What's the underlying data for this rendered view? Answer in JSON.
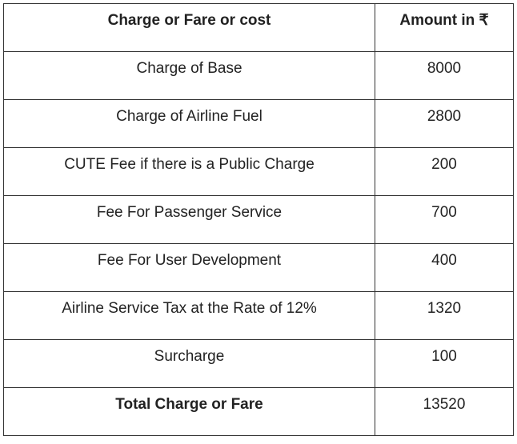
{
  "table": {
    "headers": {
      "item": "Charge or Fare or cost",
      "amount": "Amount in ₹"
    },
    "rows": [
      {
        "label": "Charge of Base",
        "amount": "8000"
      },
      {
        "label": "Charge of Airline Fuel",
        "amount": "2800"
      },
      {
        "label": "CUTE Fee if there is a Public Charge",
        "amount": "200"
      },
      {
        "label": "Fee For Passenger Service",
        "amount": "700"
      },
      {
        "label": "Fee For User Development",
        "amount": "400"
      },
      {
        "label": "Airline Service Tax at the Rate of 12%",
        "amount": "1320"
      },
      {
        "label": "Surcharge",
        "amount": "100"
      }
    ],
    "total": {
      "label": "Total Charge or Fare",
      "amount": "13520"
    }
  }
}
